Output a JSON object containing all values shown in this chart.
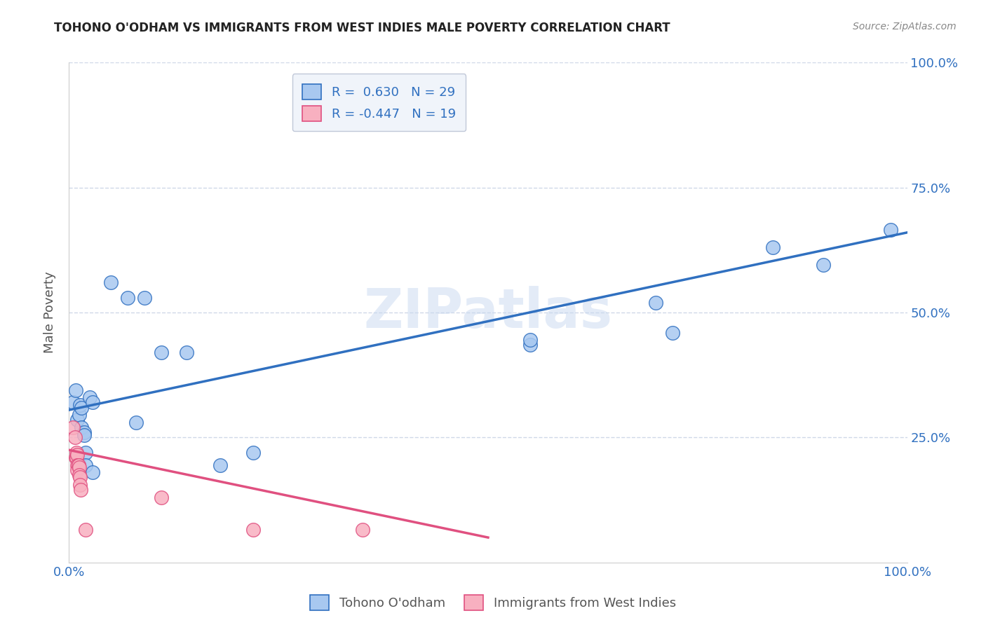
{
  "title": "TOHONO O'ODHAM VS IMMIGRANTS FROM WEST INDIES MALE POVERTY CORRELATION CHART",
  "source": "Source: ZipAtlas.com",
  "ylabel": "Male Poverty",
  "xlim": [
    0,
    1.0
  ],
  "ylim": [
    0,
    1.0
  ],
  "ytick_positions": [
    0.25,
    0.5,
    0.75,
    1.0
  ],
  "ytick_labels": [
    "25.0%",
    "50.0%",
    "75.0%",
    "100.0%"
  ],
  "watermark": "ZIPatlas",
  "blue_R": "0.630",
  "blue_N": "29",
  "pink_R": "-0.447",
  "pink_N": "19",
  "blue_color": "#a8c8f0",
  "pink_color": "#f8b0c0",
  "blue_line_color": "#3070c0",
  "pink_line_color": "#e05080",
  "blue_scatter": [
    [
      0.005,
      0.32
    ],
    [
      0.008,
      0.345
    ],
    [
      0.01,
      0.285
    ],
    [
      0.012,
      0.295
    ],
    [
      0.013,
      0.315
    ],
    [
      0.015,
      0.27
    ],
    [
      0.015,
      0.31
    ],
    [
      0.018,
      0.26
    ],
    [
      0.018,
      0.255
    ],
    [
      0.02,
      0.22
    ],
    [
      0.02,
      0.195
    ],
    [
      0.025,
      0.33
    ],
    [
      0.028,
      0.32
    ],
    [
      0.028,
      0.18
    ],
    [
      0.05,
      0.56
    ],
    [
      0.07,
      0.53
    ],
    [
      0.08,
      0.28
    ],
    [
      0.09,
      0.53
    ],
    [
      0.11,
      0.42
    ],
    [
      0.14,
      0.42
    ],
    [
      0.18,
      0.195
    ],
    [
      0.22,
      0.22
    ],
    [
      0.55,
      0.435
    ],
    [
      0.55,
      0.445
    ],
    [
      0.7,
      0.52
    ],
    [
      0.72,
      0.46
    ],
    [
      0.84,
      0.63
    ],
    [
      0.9,
      0.595
    ],
    [
      0.98,
      0.665
    ]
  ],
  "pink_scatter": [
    [
      0.005,
      0.27
    ],
    [
      0.007,
      0.25
    ],
    [
      0.008,
      0.21
    ],
    [
      0.009,
      0.21
    ],
    [
      0.009,
      0.22
    ],
    [
      0.01,
      0.215
    ],
    [
      0.01,
      0.195
    ],
    [
      0.01,
      0.185
    ],
    [
      0.011,
      0.195
    ],
    [
      0.011,
      0.195
    ],
    [
      0.012,
      0.19
    ],
    [
      0.012,
      0.175
    ],
    [
      0.013,
      0.17
    ],
    [
      0.013,
      0.155
    ],
    [
      0.014,
      0.145
    ],
    [
      0.02,
      0.065
    ],
    [
      0.11,
      0.13
    ],
    [
      0.22,
      0.065
    ],
    [
      0.35,
      0.065
    ]
  ],
  "blue_line_x": [
    0.0,
    1.0
  ],
  "blue_line_y": [
    0.305,
    0.66
  ],
  "pink_line_x": [
    0.0,
    0.5
  ],
  "pink_line_y": [
    0.225,
    0.05
  ],
  "grid_color": "#d0d8e8",
  "background_color": "#ffffff",
  "legend_box_color": "#f0f4fa"
}
